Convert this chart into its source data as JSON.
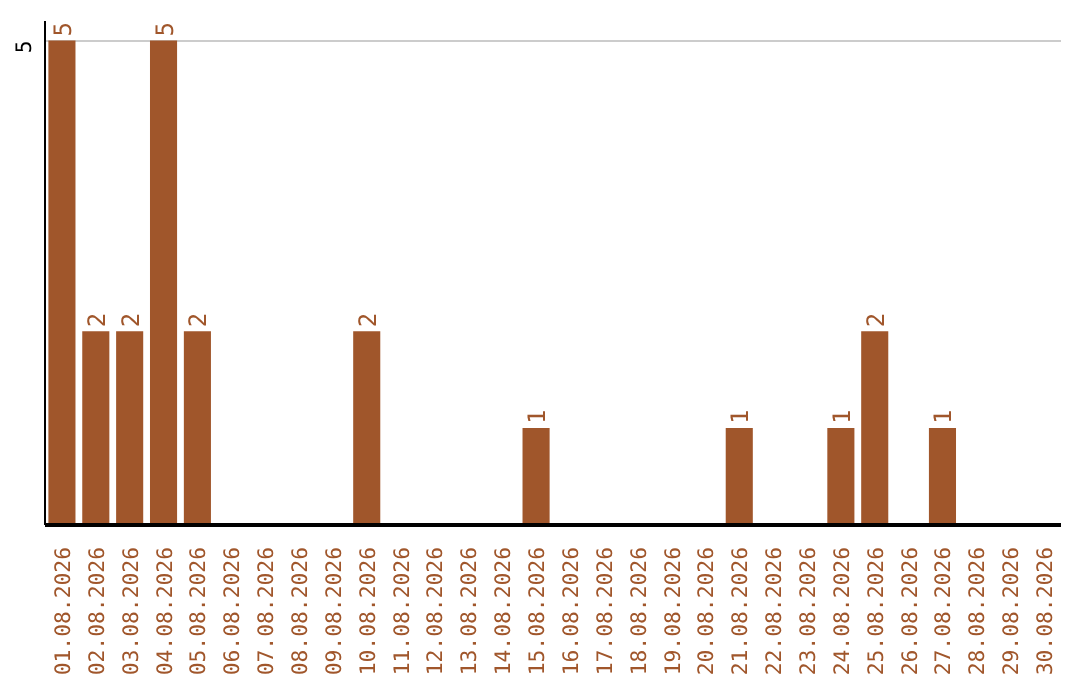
{
  "chart_data": {
    "type": "bar",
    "categories": [
      "01.08.2026",
      "02.08.2026",
      "03.08.2026",
      "04.08.2026",
      "05.08.2026",
      "06.08.2026",
      "07.08.2026",
      "08.08.2026",
      "09.08.2026",
      "10.08.2026",
      "11.08.2026",
      "12.08.2026",
      "13.08.2026",
      "14.08.2026",
      "15.08.2026",
      "16.08.2026",
      "17.08.2026",
      "18.08.2026",
      "19.08.2026",
      "20.08.2026",
      "21.08.2026",
      "22.08.2026",
      "23.08.2026",
      "24.08.2026",
      "25.08.2026",
      "26.08.2026",
      "27.08.2026",
      "28.08.2026",
      "29.08.2026",
      "30.08.2026"
    ],
    "values": [
      5,
      2,
      2,
      5,
      2,
      0,
      0,
      0,
      0,
      2,
      0,
      0,
      0,
      0,
      1,
      0,
      0,
      0,
      0,
      0,
      1,
      0,
      0,
      1,
      2,
      0,
      1,
      0,
      0,
      0
    ],
    "value_labels": [
      "5",
      "2",
      "2",
      "5",
      "2",
      null,
      null,
      null,
      null,
      "2",
      null,
      null,
      null,
      null,
      "1",
      null,
      null,
      null,
      null,
      null,
      "1",
      null,
      null,
      "1",
      "2",
      null,
      "1",
      null,
      null,
      null
    ],
    "color": "#a0562b",
    "ylim": [
      0,
      5.2
    ],
    "yticks": [
      5
    ],
    "grid": "y"
  }
}
